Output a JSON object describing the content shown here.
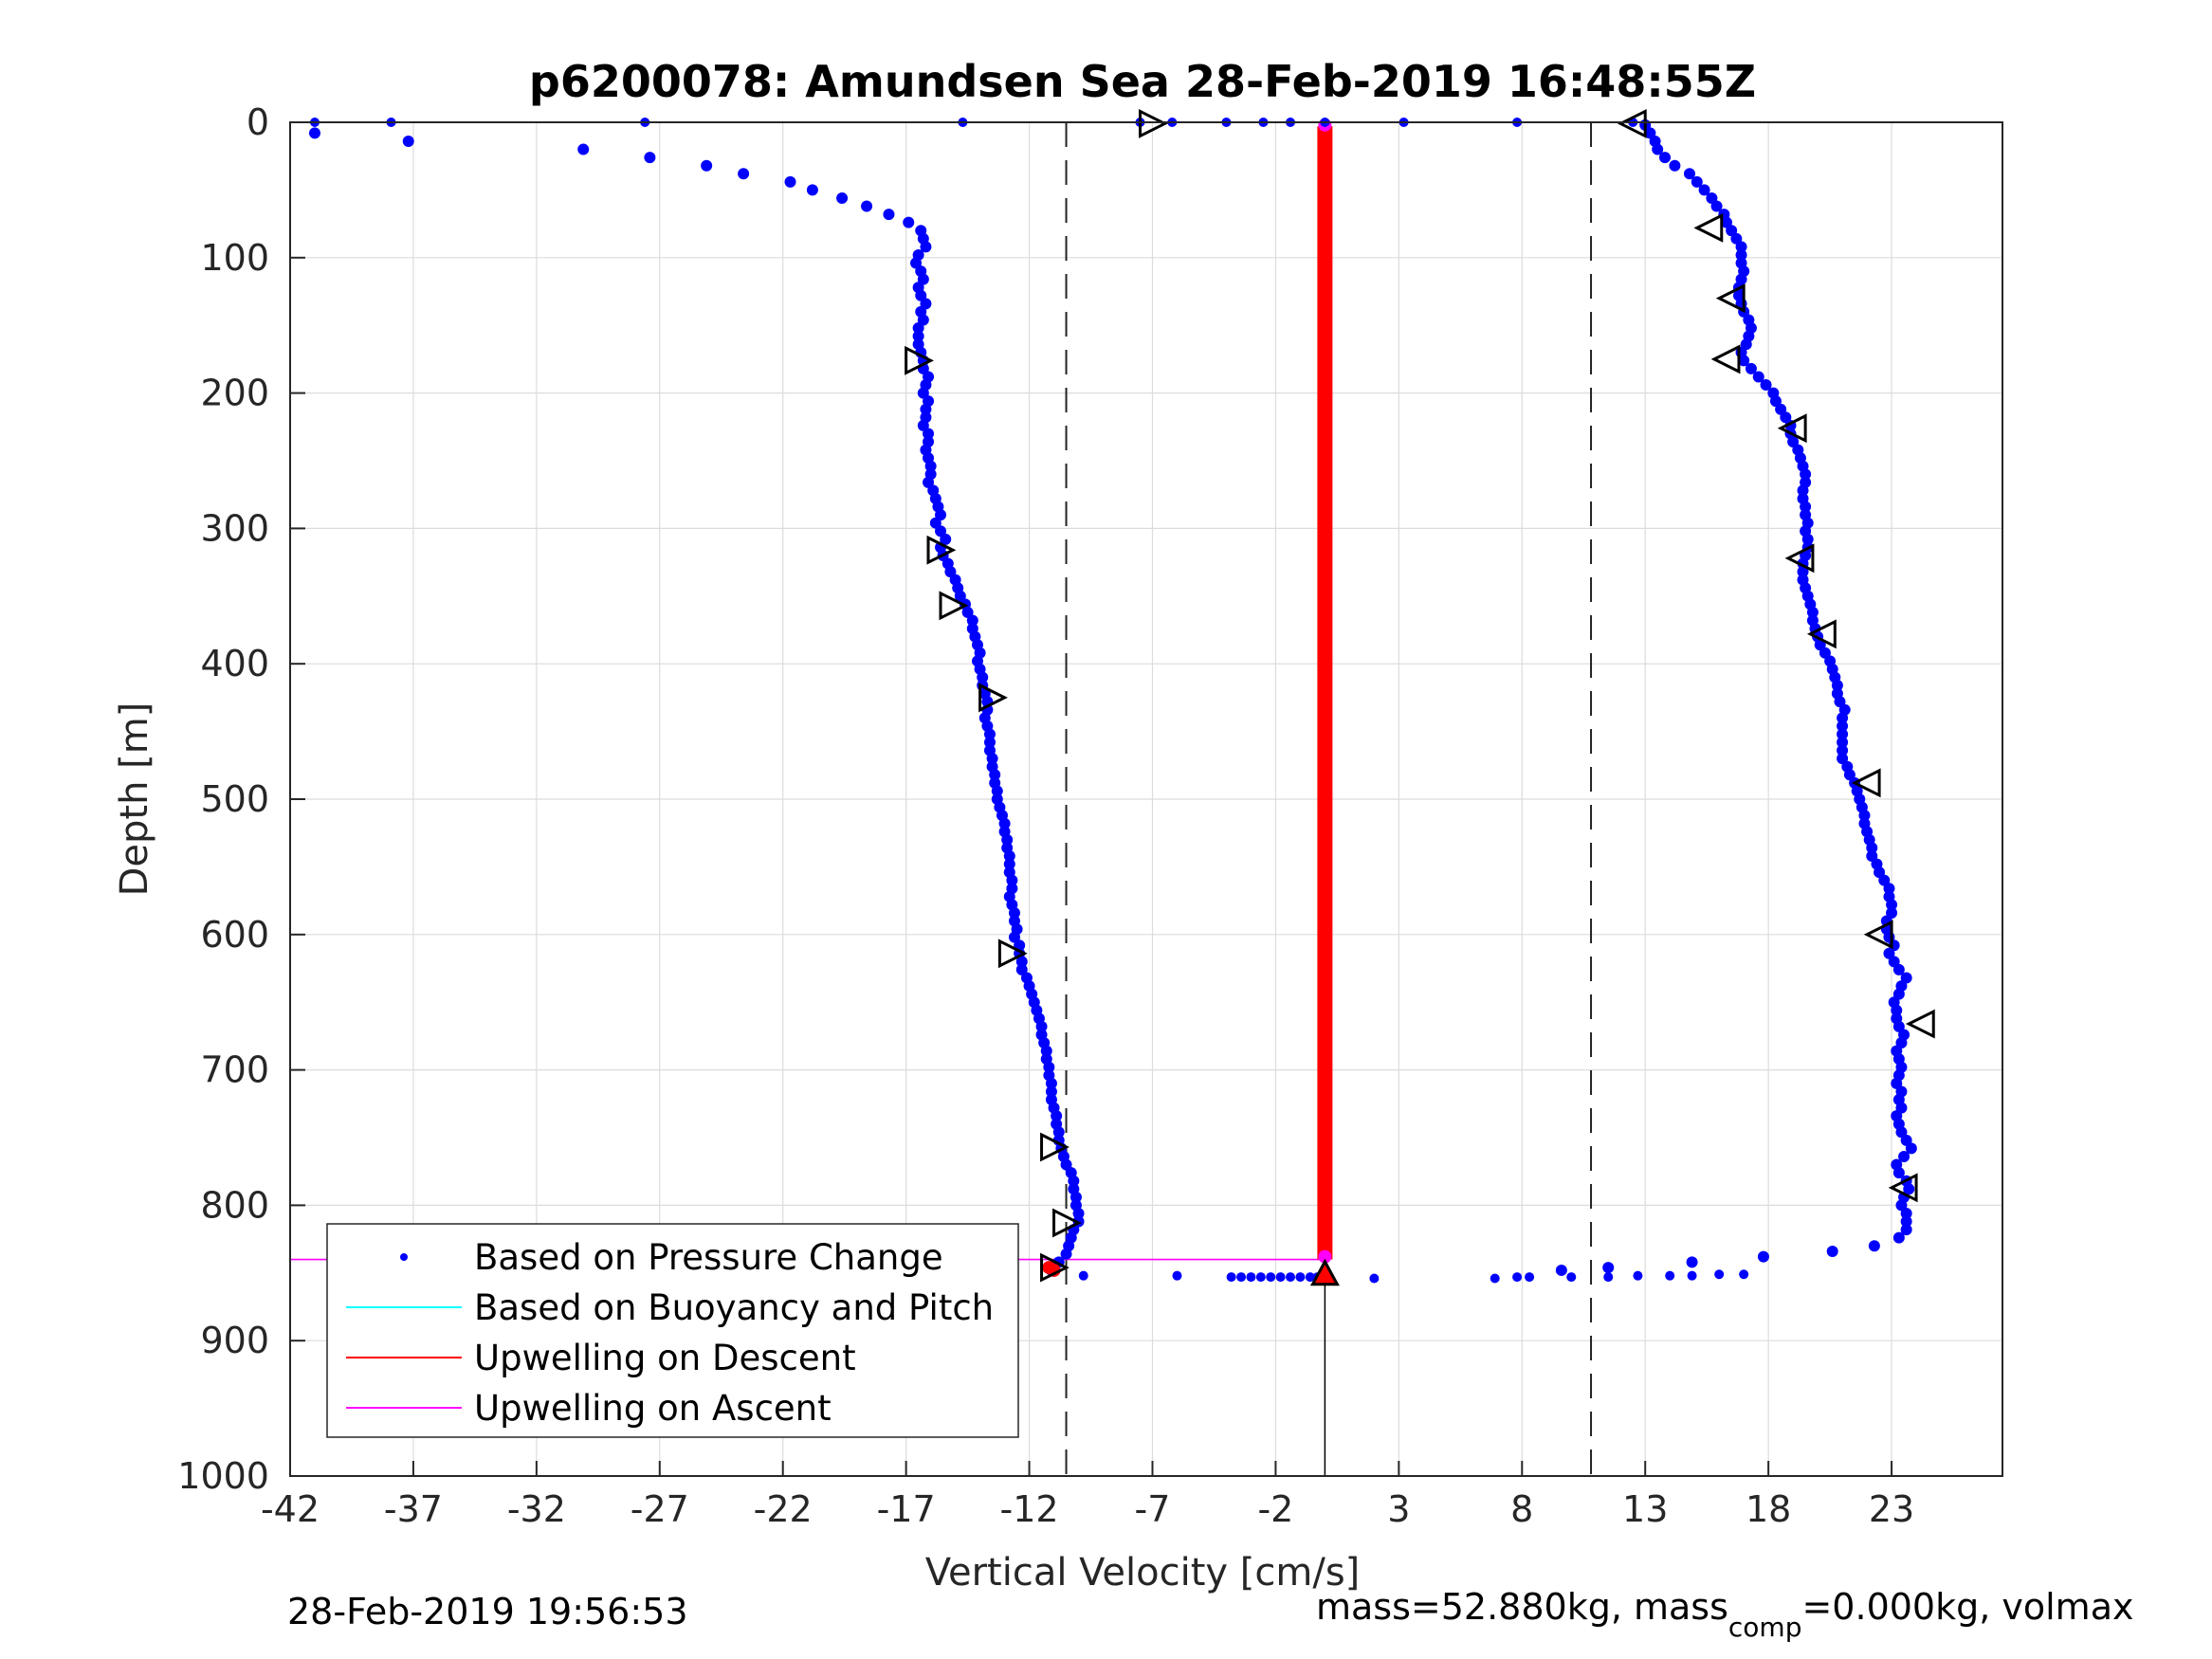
{
  "chart_data": {
    "type": "scatter",
    "title": "p6200078: Amundsen Sea 28-Feb-2019 16:48:55Z",
    "xlabel": "Vertical Velocity [cm/s]",
    "ylabel": "Depth [m]",
    "xlim": [
      -42,
      27.5
    ],
    "ylim": [
      1000,
      0
    ],
    "y_reversed": true,
    "grid": true,
    "xticks": [
      -42,
      -37,
      -32,
      -27,
      -22,
      -17,
      -12,
      -7,
      -2,
      3,
      8,
      13,
      18,
      23
    ],
    "xtick_labels": [
      "-42",
      "-37",
      "-32",
      "-27",
      "-22",
      "-17",
      "-12",
      "-7",
      "-2",
      "3",
      "8",
      "13",
      "18",
      "23"
    ],
    "yticks": [
      0,
      100,
      200,
      300,
      400,
      500,
      600,
      700,
      800,
      900,
      1000
    ],
    "ytick_labels": [
      "0",
      "100",
      "200",
      "300",
      "400",
      "500",
      "600",
      "700",
      "800",
      "900",
      "1000"
    ],
    "legend_position": "bottom-left",
    "legend": [
      {
        "label": "Based on Pressure Change",
        "color": "#0000ff",
        "marker": "dot"
      },
      {
        "label": "Based on Buoyancy and Pitch",
        "color": "#00ffff",
        "marker": "line"
      },
      {
        "label": "Upwelling on Descent",
        "color": "#ff0000",
        "marker": "line"
      },
      {
        "label": "Upwelling on Ascent",
        "color": "#ff00ff",
        "marker": "line"
      }
    ],
    "reference_lines": {
      "dashed_x": [
        -10.5,
        10.8
      ],
      "zero_x": 0,
      "ascent_depths": [
        0,
        840
      ],
      "ascent_color": "#ff00ff",
      "descent_color": "#ff0000"
    },
    "descent_series": {
      "name": "Based on Pressure Change",
      "color": "#0000ff",
      "depth": [
        8,
        14,
        20,
        26,
        32,
        38,
        44,
        50,
        56,
        62,
        68,
        74,
        80,
        86,
        92,
        98,
        104,
        110,
        116,
        122,
        128,
        134,
        140,
        146,
        152,
        158,
        164,
        170,
        176,
        182,
        188,
        194,
        200,
        206,
        212,
        218,
        224,
        230,
        236,
        242,
        248,
        254,
        260,
        266,
        272,
        278,
        284,
        290,
        296,
        302,
        308,
        314,
        320,
        326,
        332,
        338,
        344,
        350,
        356,
        362,
        368,
        374,
        380,
        386,
        392,
        398,
        404,
        410,
        416,
        422,
        428,
        434,
        440,
        446,
        452,
        458,
        464,
        470,
        476,
        482,
        488,
        494,
        500,
        506,
        512,
        518,
        524,
        530,
        536,
        542,
        548,
        554,
        560,
        566,
        572,
        578,
        584,
        590,
        596,
        602,
        608,
        614,
        620,
        626,
        632,
        638,
        644,
        650,
        656,
        662,
        668,
        674,
        680,
        686,
        692,
        698,
        704,
        710,
        716,
        722,
        728,
        734,
        740,
        746,
        752,
        758,
        764,
        770,
        776,
        782,
        788,
        794,
        800,
        806,
        812,
        818,
        824,
        830,
        836,
        842,
        848
      ],
      "velocity": [
        -41.0,
        -37.2,
        -30.1,
        -27.4,
        -25.1,
        -23.6,
        -21.7,
        -20.8,
        -19.6,
        -18.6,
        -17.7,
        -16.9,
        -16.4,
        -16.3,
        -16.2,
        -16.5,
        -16.6,
        -16.4,
        -16.3,
        -16.5,
        -16.4,
        -16.2,
        -16.4,
        -16.3,
        -16.5,
        -16.5,
        -16.5,
        -16.4,
        -16.3,
        -16.3,
        -16.1,
        -16.2,
        -16.3,
        -16.1,
        -16.2,
        -16.2,
        -16.3,
        -16.1,
        -16.1,
        -16.2,
        -16.1,
        -16.0,
        -16.0,
        -16.1,
        -15.9,
        -15.8,
        -15.7,
        -15.6,
        -15.8,
        -15.6,
        -15.4,
        -15.6,
        -15.5,
        -15.3,
        -15.2,
        -15.0,
        -14.9,
        -14.8,
        -14.6,
        -14.5,
        -14.3,
        -14.3,
        -14.2,
        -14.1,
        -14.0,
        -14.1,
        -14.0,
        -13.9,
        -13.9,
        -13.8,
        -13.7,
        -13.7,
        -13.8,
        -13.7,
        -13.6,
        -13.6,
        -13.6,
        -13.5,
        -13.5,
        -13.4,
        -13.4,
        -13.3,
        -13.3,
        -13.2,
        -13.1,
        -13.0,
        -13.0,
        -12.9,
        -12.9,
        -12.8,
        -12.8,
        -12.8,
        -12.7,
        -12.7,
        -12.8,
        -12.7,
        -12.6,
        -12.6,
        -12.5,
        -12.6,
        -12.4,
        -12.4,
        -12.3,
        -12.3,
        -12.1,
        -12.0,
        -11.9,
        -11.8,
        -11.7,
        -11.6,
        -11.5,
        -11.5,
        -11.4,
        -11.3,
        -11.3,
        -11.2,
        -11.2,
        -11.1,
        -11.1,
        -11.1,
        -11.0,
        -10.9,
        -10.9,
        -10.8,
        -10.8,
        -10.7,
        -10.6,
        -10.5,
        -10.3,
        -10.2,
        -10.2,
        -10.1,
        -10.1,
        -10.0,
        -10.0,
        -10.2,
        -10.3,
        -10.4,
        -10.5,
        -10.8,
        -11.1
      ]
    },
    "ascent_series": {
      "name": "Based on Pressure Change",
      "color": "#0000ff",
      "depth": [
        848,
        846,
        842,
        838,
        834,
        830,
        824,
        818,
        812,
        806,
        800,
        794,
        788,
        782,
        776,
        770,
        764,
        758,
        752,
        746,
        740,
        734,
        728,
        722,
        716,
        710,
        704,
        698,
        692,
        686,
        680,
        674,
        668,
        662,
        656,
        650,
        644,
        638,
        632,
        626,
        620,
        614,
        608,
        602,
        596,
        590,
        584,
        578,
        572,
        566,
        560,
        554,
        548,
        542,
        536,
        530,
        524,
        518,
        512,
        506,
        500,
        494,
        488,
        482,
        476,
        470,
        464,
        458,
        452,
        446,
        440,
        434,
        428,
        422,
        416,
        410,
        404,
        398,
        392,
        386,
        380,
        374,
        368,
        362,
        356,
        350,
        344,
        338,
        332,
        326,
        320,
        314,
        308,
        302,
        296,
        290,
        284,
        278,
        272,
        266,
        260,
        254,
        248,
        242,
        236,
        230,
        224,
        218,
        212,
        206,
        200,
        194,
        188,
        182,
        176,
        170,
        164,
        158,
        152,
        146,
        140,
        134,
        128,
        122,
        116,
        110,
        104,
        98,
        92,
        86,
        80,
        74,
        68,
        62,
        56,
        50,
        44,
        38,
        32,
        26,
        20,
        14,
        8,
        2
      ],
      "velocity": [
        9.6,
        11.5,
        14.9,
        17.8,
        20.6,
        22.3,
        23.3,
        23.6,
        23.6,
        23.6,
        23.4,
        23.5,
        23.7,
        23.6,
        23.3,
        23.2,
        23.5,
        23.8,
        23.6,
        23.4,
        23.3,
        23.2,
        23.4,
        23.3,
        23.4,
        23.2,
        23.3,
        23.4,
        23.3,
        23.2,
        23.4,
        23.5,
        23.3,
        23.2,
        23.2,
        23.1,
        23.3,
        23.4,
        23.6,
        23.3,
        23.1,
        22.9,
        23.1,
        22.9,
        22.8,
        22.8,
        23.0,
        23.0,
        22.9,
        22.9,
        22.7,
        22.5,
        22.4,
        22.2,
        22.2,
        22.1,
        22.0,
        21.9,
        21.9,
        21.8,
        21.7,
        21.6,
        21.5,
        21.3,
        21.2,
        21.0,
        21.0,
        21.0,
        21.0,
        21.0,
        21.0,
        21.1,
        20.9,
        20.8,
        20.8,
        20.7,
        20.6,
        20.5,
        20.3,
        20.1,
        20.0,
        19.9,
        19.8,
        19.8,
        19.7,
        19.6,
        19.5,
        19.4,
        19.4,
        19.4,
        19.5,
        19.6,
        19.6,
        19.5,
        19.6,
        19.5,
        19.5,
        19.4,
        19.4,
        19.5,
        19.5,
        19.4,
        19.3,
        19.2,
        19.0,
        18.9,
        18.9,
        18.7,
        18.5,
        18.3,
        18.2,
        17.9,
        17.6,
        17.3,
        17.0,
        16.9,
        17.1,
        17.2,
        17.3,
        17.2,
        17.0,
        16.9,
        16.8,
        16.8,
        16.9,
        17.0,
        16.9,
        16.9,
        16.9,
        16.7,
        16.5,
        16.3,
        16.2,
        15.9,
        15.7,
        15.4,
        15.1,
        14.8,
        14.2,
        13.8,
        13.5,
        13.4,
        13.2,
        13.0
      ]
    },
    "surface_scatter": {
      "depth": [
        0,
        0,
        0,
        0,
        0,
        0,
        0,
        0,
        0,
        0,
        0,
        0,
        0
      ],
      "velocity": [
        -41,
        -37.9,
        -27.6,
        -14.7,
        -7.5,
        -6.2,
        -4.0,
        -2.5,
        -1.4,
        0,
        3.2,
        7.8,
        12.5
      ]
    },
    "bottom_scatter": {
      "depth": [
        852,
        852,
        853,
        853,
        853,
        853,
        853,
        853,
        853,
        853,
        853,
        853,
        853,
        854,
        854,
        853,
        853,
        853,
        853,
        852,
        852,
        852,
        851,
        851
      ],
      "velocity": [
        -9.8,
        -6.0,
        -3.8,
        -3.4,
        -3.0,
        -2.6,
        -2.2,
        -1.8,
        -1.4,
        -1.0,
        -0.6,
        -0.3,
        0.0,
        2.0,
        6.9,
        7.8,
        8.3,
        10.0,
        11.5,
        12.7,
        14.0,
        14.9,
        16.0,
        17.0
      ]
    },
    "descent_triangles": {
      "depth": [
        1,
        176,
        316,
        357,
        425,
        614,
        757,
        813,
        846
      ],
      "velocity": [
        -7.0,
        -16.5,
        -15.6,
        -15.1,
        -13.5,
        -12.7,
        -11.0,
        -10.5,
        -11.0
      ]
    },
    "ascent_triangles": {
      "depth": [
        1,
        78,
        130,
        175,
        226,
        322,
        378,
        488,
        600,
        666,
        787
      ],
      "velocity": [
        12.5,
        15.6,
        16.5,
        16.3,
        19.0,
        19.3,
        20.2,
        22.0,
        22.5,
        24.2,
        23.5
      ],
      "bottom_marker": {
        "depth": 850,
        "velocity": 0
      }
    },
    "descent_red_points": {
      "depth": [
        846,
        848
      ],
      "velocity": [
        -11.2,
        -11.0
      ]
    }
  },
  "footer": {
    "timestamp": "28-Feb-2019 19:56:53",
    "mass_text_main": "mass=52.880kg, mass",
    "mass_text_sub": "comp",
    "mass_text_end": "=0.000kg, volmax"
  }
}
